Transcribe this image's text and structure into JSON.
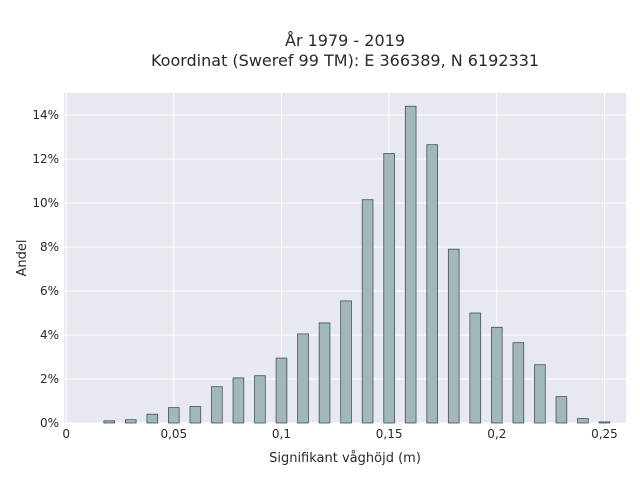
{
  "chart_data": {
    "type": "bar",
    "title": "År 1979 - 2019",
    "subtitle": "Koordinat (Sweref 99 TM): E 366389, N 6192331",
    "xlabel": "Signifikant våghöjd (m)",
    "ylabel": "Andel",
    "xlim": [
      -0.001,
      0.26
    ],
    "ylim": [
      0,
      0.15
    ],
    "x_ticks": [
      {
        "value": 0,
        "label": "0"
      },
      {
        "value": 0.05,
        "label": "0,05"
      },
      {
        "value": 0.1,
        "label": "0,1"
      },
      {
        "value": 0.15,
        "label": "0,15"
      },
      {
        "value": 0.2,
        "label": "0,2"
      },
      {
        "value": 0.25,
        "label": "0,25"
      }
    ],
    "y_ticks": [
      {
        "value": 0,
        "label": "0%"
      },
      {
        "value": 0.02,
        "label": "2%"
      },
      {
        "value": 0.04,
        "label": "4%"
      },
      {
        "value": 0.06,
        "label": "6%"
      },
      {
        "value": 0.08,
        "label": "8%"
      },
      {
        "value": 0.1,
        "label": "10%"
      },
      {
        "value": 0.12,
        "label": "12%"
      },
      {
        "value": 0.14,
        "label": "14%"
      }
    ],
    "grid": true,
    "bar_width": 0.005,
    "x": [
      0.02,
      0.03,
      0.04,
      0.05,
      0.06,
      0.07,
      0.08,
      0.09,
      0.1,
      0.11,
      0.12,
      0.13,
      0.14,
      0.15,
      0.16,
      0.17,
      0.18,
      0.19,
      0.2,
      0.21,
      0.22,
      0.23,
      0.24,
      0.25
    ],
    "values": [
      0.001,
      0.0015,
      0.004,
      0.007,
      0.0075,
      0.0165,
      0.0205,
      0.0215,
      0.0295,
      0.0405,
      0.0455,
      0.0555,
      0.1015,
      0.1225,
      0.144,
      0.1265,
      0.079,
      0.05,
      0.0435,
      0.0365,
      0.0265,
      0.012,
      0.002,
      0.0005
    ],
    "colors": {
      "bar_fill": "#a2b8b8",
      "bar_stroke": "#3f5555",
      "plot_background": "#e8e8f0",
      "grid": "#ffffff"
    }
  }
}
